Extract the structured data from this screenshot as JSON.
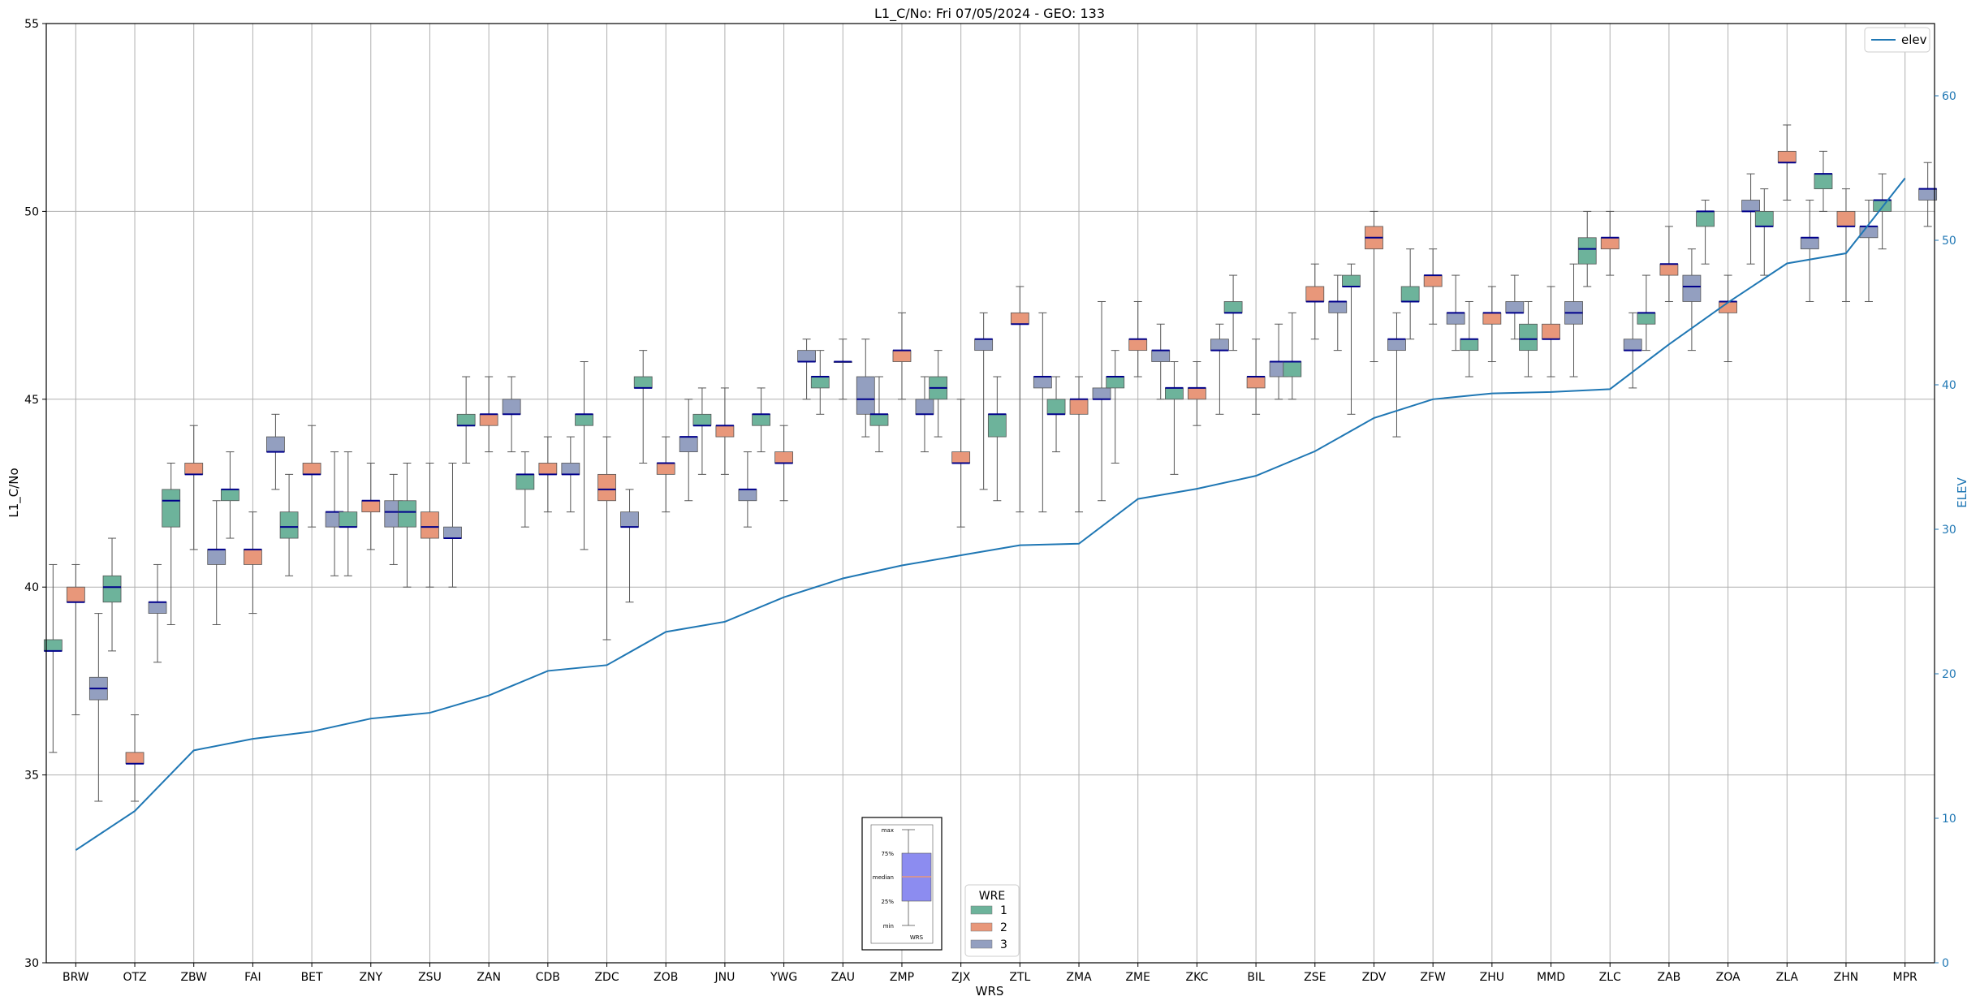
{
  "chart_data": {
    "type": "box",
    "title": "L1_C/No: Fri 07/05/2024 - GEO: 133",
    "xlabel": "WRS",
    "ylabel": "L1_C/No",
    "y2label": "ELEV",
    "ylim": [
      30,
      55
    ],
    "y2lim": [
      0,
      65
    ],
    "yticks": [
      30,
      35,
      40,
      45,
      50,
      55
    ],
    "y2ticks": [
      0,
      10,
      20,
      30,
      40,
      50,
      60
    ],
    "grid": true,
    "colors": {
      "1": "#6db39b",
      "2": "#e8977a",
      "3": "#939fc0",
      "median": "#00008b",
      "elev": "#1f77b4",
      "whisker": "#555555"
    },
    "categories": [
      "BRW",
      "OTZ",
      "ZBW",
      "FAI",
      "BET",
      "ZNY",
      "ZSU",
      "ZAN",
      "CDB",
      "ZDC",
      "ZOB",
      "JNU",
      "YWG",
      "ZAU",
      "ZMP",
      "ZJX",
      "ZTL",
      "ZMA",
      "ZME",
      "ZKC",
      "BIL",
      "ZSE",
      "ZDV",
      "ZFW",
      "ZHU",
      "MMD",
      "ZLC",
      "ZAB",
      "ZOA",
      "ZLA",
      "ZHN",
      "MPR"
    ],
    "boxes": [
      {
        "cat": "BRW",
        "wre": "1",
        "min": 35.6,
        "q1": 38.3,
        "median": 38.3,
        "q3": 38.6,
        "max": 40.6
      },
      {
        "cat": "BRW",
        "wre": "2",
        "min": 36.6,
        "q1": 39.6,
        "median": 39.6,
        "q3": 40.0,
        "max": 40.6
      },
      {
        "cat": "BRW",
        "wre": "3",
        "min": 34.3,
        "q1": 37.0,
        "median": 37.3,
        "q3": 37.6,
        "max": 39.3
      },
      {
        "cat": "OTZ",
        "wre": "1",
        "min": 38.3,
        "q1": 39.6,
        "median": 40.0,
        "q3": 40.3,
        "max": 41.3
      },
      {
        "cat": "OTZ",
        "wre": "2",
        "min": 34.3,
        "q1": 35.3,
        "median": 35.3,
        "q3": 35.6,
        "max": 36.6
      },
      {
        "cat": "OTZ",
        "wre": "3",
        "min": 38.0,
        "q1": 39.3,
        "median": 39.6,
        "q3": 39.6,
        "max": 40.6
      },
      {
        "cat": "ZBW",
        "wre": "1",
        "min": 39.0,
        "q1": 41.6,
        "median": 42.3,
        "q3": 42.6,
        "max": 43.3
      },
      {
        "cat": "ZBW",
        "wre": "2",
        "min": 41.0,
        "q1": 43.0,
        "median": 43.0,
        "q3": 43.3,
        "max": 44.3
      },
      {
        "cat": "ZBW",
        "wre": "3",
        "min": 39.0,
        "q1": 40.6,
        "median": 41.0,
        "q3": 41.0,
        "max": 42.3
      },
      {
        "cat": "FAI",
        "wre": "1",
        "min": 41.3,
        "q1": 42.3,
        "median": 42.6,
        "q3": 42.6,
        "max": 43.6
      },
      {
        "cat": "FAI",
        "wre": "2",
        "min": 39.3,
        "q1": 40.6,
        "median": 41.0,
        "q3": 41.0,
        "max": 42.0
      },
      {
        "cat": "FAI",
        "wre": "3",
        "min": 42.6,
        "q1": 43.6,
        "median": 43.6,
        "q3": 44.0,
        "max": 44.6
      },
      {
        "cat": "BET",
        "wre": "1",
        "min": 40.3,
        "q1": 41.3,
        "median": 41.6,
        "q3": 42.0,
        "max": 43.0
      },
      {
        "cat": "BET",
        "wre": "2",
        "min": 41.6,
        "q1": 43.0,
        "median": 43.0,
        "q3": 43.3,
        "max": 44.3
      },
      {
        "cat": "BET",
        "wre": "3",
        "min": 40.3,
        "q1": 41.6,
        "median": 42.0,
        "q3": 42.0,
        "max": 43.6
      },
      {
        "cat": "ZNY",
        "wre": "1",
        "min": 40.3,
        "q1": 41.6,
        "median": 41.6,
        "q3": 42.0,
        "max": 43.6
      },
      {
        "cat": "ZNY",
        "wre": "2",
        "min": 41.0,
        "q1": 42.0,
        "median": 42.3,
        "q3": 42.3,
        "max": 43.3
      },
      {
        "cat": "ZNY",
        "wre": "3",
        "min": 40.6,
        "q1": 41.6,
        "median": 42.0,
        "q3": 42.3,
        "max": 43.0
      },
      {
        "cat": "ZSU",
        "wre": "1",
        "min": 40.0,
        "q1": 41.6,
        "median": 42.0,
        "q3": 42.3,
        "max": 43.3
      },
      {
        "cat": "ZSU",
        "wre": "2",
        "min": 40.0,
        "q1": 41.3,
        "median": 41.6,
        "q3": 42.0,
        "max": 43.3
      },
      {
        "cat": "ZSU",
        "wre": "3",
        "min": 40.0,
        "q1": 41.3,
        "median": 41.3,
        "q3": 41.6,
        "max": 43.3
      },
      {
        "cat": "ZAN",
        "wre": "1",
        "min": 43.3,
        "q1": 44.3,
        "median": 44.3,
        "q3": 44.6,
        "max": 45.6
      },
      {
        "cat": "ZAN",
        "wre": "2",
        "min": 43.6,
        "q1": 44.3,
        "median": 44.6,
        "q3": 44.6,
        "max": 45.6
      },
      {
        "cat": "ZAN",
        "wre": "3",
        "min": 43.6,
        "q1": 44.6,
        "median": 44.6,
        "q3": 45.0,
        "max": 45.6
      },
      {
        "cat": "CDB",
        "wre": "1",
        "min": 41.6,
        "q1": 42.6,
        "median": 43.0,
        "q3": 43.0,
        "max": 43.6
      },
      {
        "cat": "CDB",
        "wre": "2",
        "min": 42.0,
        "q1": 43.0,
        "median": 43.0,
        "q3": 43.3,
        "max": 44.0
      },
      {
        "cat": "CDB",
        "wre": "3",
        "min": 42.0,
        "q1": 43.0,
        "median": 43.0,
        "q3": 43.3,
        "max": 44.0
      },
      {
        "cat": "ZDC",
        "wre": "1",
        "min": 41.0,
        "q1": 44.3,
        "median": 44.6,
        "q3": 44.6,
        "max": 46.0
      },
      {
        "cat": "ZDC",
        "wre": "2",
        "min": 38.6,
        "q1": 42.3,
        "median": 42.6,
        "q3": 43.0,
        "max": 44.0
      },
      {
        "cat": "ZDC",
        "wre": "3",
        "min": 39.6,
        "q1": 41.6,
        "median": 41.6,
        "q3": 42.0,
        "max": 42.6
      },
      {
        "cat": "ZOB",
        "wre": "1",
        "min": 43.3,
        "q1": 45.3,
        "median": 45.3,
        "q3": 45.6,
        "max": 46.3
      },
      {
        "cat": "ZOB",
        "wre": "2",
        "min": 42.0,
        "q1": 43.0,
        "median": 43.3,
        "q3": 43.3,
        "max": 44.0
      },
      {
        "cat": "ZOB",
        "wre": "3",
        "min": 42.3,
        "q1": 43.6,
        "median": 44.0,
        "q3": 44.0,
        "max": 45.0
      },
      {
        "cat": "JNU",
        "wre": "1",
        "min": 43.0,
        "q1": 44.3,
        "median": 44.3,
        "q3": 44.6,
        "max": 45.3
      },
      {
        "cat": "JNU",
        "wre": "2",
        "min": 43.0,
        "q1": 44.0,
        "median": 44.3,
        "q3": 44.3,
        "max": 45.3
      },
      {
        "cat": "JNU",
        "wre": "3",
        "min": 41.6,
        "q1": 42.3,
        "median": 42.6,
        "q3": 42.6,
        "max": 43.6
      },
      {
        "cat": "YWG",
        "wre": "1",
        "min": 43.6,
        "q1": 44.3,
        "median": 44.6,
        "q3": 44.6,
        "max": 45.3
      },
      {
        "cat": "YWG",
        "wre": "2",
        "min": 42.3,
        "q1": 43.3,
        "median": 43.3,
        "q3": 43.6,
        "max": 44.3
      },
      {
        "cat": "YWG",
        "wre": "3",
        "min": 45.0,
        "q1": 46.0,
        "median": 46.0,
        "q3": 46.3,
        "max": 46.6
      },
      {
        "cat": "ZAU",
        "wre": "1",
        "min": 44.6,
        "q1": 45.3,
        "median": 45.6,
        "q3": 45.6,
        "max": 46.3
      },
      {
        "cat": "ZAU",
        "wre": "2",
        "min": 45.0,
        "q1": 46.0,
        "median": 46.0,
        "q3": 46.0,
        "max": 46.6
      },
      {
        "cat": "ZAU",
        "wre": "3",
        "min": 44.0,
        "q1": 44.6,
        "median": 45.0,
        "q3": 45.6,
        "max": 46.6
      },
      {
        "cat": "ZMP",
        "wre": "1",
        "min": 43.6,
        "q1": 44.3,
        "median": 44.6,
        "q3": 44.6,
        "max": 45.6
      },
      {
        "cat": "ZMP",
        "wre": "2",
        "min": 45.0,
        "q1": 46.0,
        "median": 46.3,
        "q3": 46.3,
        "max": 47.3
      },
      {
        "cat": "ZMP",
        "wre": "3",
        "min": 43.6,
        "q1": 44.6,
        "median": 44.6,
        "q3": 45.0,
        "max": 45.6
      },
      {
        "cat": "ZJX",
        "wre": "1",
        "min": 44.0,
        "q1": 45.0,
        "median": 45.3,
        "q3": 45.6,
        "max": 46.3
      },
      {
        "cat": "ZJX",
        "wre": "2",
        "min": 41.6,
        "q1": 43.3,
        "median": 43.3,
        "q3": 43.6,
        "max": 45.0
      },
      {
        "cat": "ZJX",
        "wre": "3",
        "min": 42.6,
        "q1": 46.3,
        "median": 46.6,
        "q3": 46.6,
        "max": 47.3
      },
      {
        "cat": "ZTL",
        "wre": "1",
        "min": 42.3,
        "q1": 44.0,
        "median": 44.6,
        "q3": 44.6,
        "max": 45.6
      },
      {
        "cat": "ZTL",
        "wre": "2",
        "min": 42.0,
        "q1": 47.0,
        "median": 47.0,
        "q3": 47.3,
        "max": 48.0
      },
      {
        "cat": "ZTL",
        "wre": "3",
        "min": 42.0,
        "q1": 45.3,
        "median": 45.6,
        "q3": 45.6,
        "max": 47.3
      },
      {
        "cat": "ZMA",
        "wre": "1",
        "min": 43.6,
        "q1": 44.6,
        "median": 44.6,
        "q3": 45.0,
        "max": 45.6
      },
      {
        "cat": "ZMA",
        "wre": "2",
        "min": 42.0,
        "q1": 44.6,
        "median": 45.0,
        "q3": 45.0,
        "max": 45.6
      },
      {
        "cat": "ZMA",
        "wre": "3",
        "min": 42.3,
        "q1": 45.0,
        "median": 45.0,
        "q3": 45.3,
        "max": 47.6
      },
      {
        "cat": "ZME",
        "wre": "1",
        "min": 43.3,
        "q1": 45.3,
        "median": 45.6,
        "q3": 45.6,
        "max": 46.3
      },
      {
        "cat": "ZME",
        "wre": "2",
        "min": 45.6,
        "q1": 46.3,
        "median": 46.6,
        "q3": 46.6,
        "max": 47.6
      },
      {
        "cat": "ZME",
        "wre": "3",
        "min": 45.0,
        "q1": 46.0,
        "median": 46.3,
        "q3": 46.3,
        "max": 47.0
      },
      {
        "cat": "ZKC",
        "wre": "1",
        "min": 43.0,
        "q1": 45.0,
        "median": 45.3,
        "q3": 45.3,
        "max": 46.0
      },
      {
        "cat": "ZKC",
        "wre": "2",
        "min": 44.3,
        "q1": 45.0,
        "median": 45.3,
        "q3": 45.3,
        "max": 46.0
      },
      {
        "cat": "ZKC",
        "wre": "3",
        "min": 44.6,
        "q1": 46.3,
        "median": 46.3,
        "q3": 46.6,
        "max": 47.0
      },
      {
        "cat": "BIL",
        "wre": "1",
        "min": 46.3,
        "q1": 47.3,
        "median": 47.3,
        "q3": 47.6,
        "max": 48.3
      },
      {
        "cat": "BIL",
        "wre": "2",
        "min": 44.6,
        "q1": 45.3,
        "median": 45.6,
        "q3": 45.6,
        "max": 46.6
      },
      {
        "cat": "BIL",
        "wre": "3",
        "min": 45.0,
        "q1": 45.6,
        "median": 46.0,
        "q3": 46.0,
        "max": 47.0
      },
      {
        "cat": "ZSE",
        "wre": "1",
        "min": 45.0,
        "q1": 45.6,
        "median": 46.0,
        "q3": 46.0,
        "max": 47.3
      },
      {
        "cat": "ZSE",
        "wre": "2",
        "min": 46.6,
        "q1": 47.6,
        "median": 47.6,
        "q3": 48.0,
        "max": 48.6
      },
      {
        "cat": "ZSE",
        "wre": "3",
        "min": 46.3,
        "q1": 47.3,
        "median": 47.6,
        "q3": 47.6,
        "max": 48.3
      },
      {
        "cat": "ZDV",
        "wre": "1",
        "min": 44.6,
        "q1": 48.0,
        "median": 48.0,
        "q3": 48.3,
        "max": 48.6
      },
      {
        "cat": "ZDV",
        "wre": "2",
        "min": 46.0,
        "q1": 49.0,
        "median": 49.3,
        "q3": 49.6,
        "max": 50.0
      },
      {
        "cat": "ZDV",
        "wre": "3",
        "min": 44.0,
        "q1": 46.3,
        "median": 46.6,
        "q3": 46.6,
        "max": 47.3
      },
      {
        "cat": "ZFW",
        "wre": "1",
        "min": 46.6,
        "q1": 47.6,
        "median": 47.6,
        "q3": 48.0,
        "max": 49.0
      },
      {
        "cat": "ZFW",
        "wre": "2",
        "min": 47.0,
        "q1": 48.0,
        "median": 48.3,
        "q3": 48.3,
        "max": 49.0
      },
      {
        "cat": "ZFW",
        "wre": "3",
        "min": 46.3,
        "q1": 47.0,
        "median": 47.3,
        "q3": 47.3,
        "max": 48.3
      },
      {
        "cat": "ZHU",
        "wre": "1",
        "min": 45.6,
        "q1": 46.3,
        "median": 46.6,
        "q3": 46.6,
        "max": 47.6
      },
      {
        "cat": "ZHU",
        "wre": "2",
        "min": 46.0,
        "q1": 47.0,
        "median": 47.3,
        "q3": 47.3,
        "max": 48.0
      },
      {
        "cat": "ZHU",
        "wre": "3",
        "min": 46.6,
        "q1": 47.3,
        "median": 47.3,
        "q3": 47.6,
        "max": 48.3
      },
      {
        "cat": "MMD",
        "wre": "1",
        "min": 45.6,
        "q1": 46.3,
        "median": 46.6,
        "q3": 47.0,
        "max": 47.6
      },
      {
        "cat": "MMD",
        "wre": "2",
        "min": 45.6,
        "q1": 46.6,
        "median": 46.6,
        "q3": 47.0,
        "max": 48.0
      },
      {
        "cat": "MMD",
        "wre": "3",
        "min": 45.6,
        "q1": 47.0,
        "median": 47.3,
        "q3": 47.6,
        "max": 48.6
      },
      {
        "cat": "ZLC",
        "wre": "1",
        "min": 48.0,
        "q1": 48.6,
        "median": 49.0,
        "q3": 49.3,
        "max": 50.0
      },
      {
        "cat": "ZLC",
        "wre": "2",
        "min": 48.3,
        "q1": 49.0,
        "median": 49.3,
        "q3": 49.3,
        "max": 50.0
      },
      {
        "cat": "ZLC",
        "wre": "3",
        "min": 45.3,
        "q1": 46.3,
        "median": 46.3,
        "q3": 46.6,
        "max": 47.3
      },
      {
        "cat": "ZAB",
        "wre": "1",
        "min": 46.3,
        "q1": 47.0,
        "median": 47.3,
        "q3": 47.3,
        "max": 48.3
      },
      {
        "cat": "ZAB",
        "wre": "2",
        "min": 47.6,
        "q1": 48.3,
        "median": 48.6,
        "q3": 48.6,
        "max": 49.6
      },
      {
        "cat": "ZAB",
        "wre": "3",
        "min": 46.3,
        "q1": 47.6,
        "median": 48.0,
        "q3": 48.3,
        "max": 49.0
      },
      {
        "cat": "ZOA",
        "wre": "1",
        "min": 48.6,
        "q1": 49.6,
        "median": 50.0,
        "q3": 50.0,
        "max": 50.3
      },
      {
        "cat": "ZOA",
        "wre": "2",
        "min": 46.0,
        "q1": 47.3,
        "median": 47.6,
        "q3": 47.6,
        "max": 48.3
      },
      {
        "cat": "ZOA",
        "wre": "3",
        "min": 48.6,
        "q1": 50.0,
        "median": 50.0,
        "q3": 50.3,
        "max": 51.0
      },
      {
        "cat": "ZLA",
        "wre": "1",
        "min": 48.3,
        "q1": 49.6,
        "median": 49.6,
        "q3": 50.0,
        "max": 50.6
      },
      {
        "cat": "ZLA",
        "wre": "2",
        "min": 50.3,
        "q1": 51.3,
        "median": 51.3,
        "q3": 51.6,
        "max": 52.3
      },
      {
        "cat": "ZLA",
        "wre": "3",
        "min": 47.6,
        "q1": 49.0,
        "median": 49.3,
        "q3": 49.3,
        "max": 50.3
      },
      {
        "cat": "ZHN",
        "wre": "1",
        "min": 50.0,
        "q1": 50.6,
        "median": 51.0,
        "q3": 51.0,
        "max": 51.6
      },
      {
        "cat": "ZHN",
        "wre": "2",
        "min": 47.6,
        "q1": 49.6,
        "median": 49.6,
        "q3": 50.0,
        "max": 50.6
      },
      {
        "cat": "ZHN",
        "wre": "3",
        "min": 47.6,
        "q1": 49.3,
        "median": 49.6,
        "q3": 49.6,
        "max": 50.3
      },
      {
        "cat": "MPR",
        "wre": "1",
        "min": 49.0,
        "q1": 50.0,
        "median": 50.3,
        "q3": 50.3,
        "max": 51.0
      },
      {
        "cat": "MPR",
        "wre": "3",
        "min": 49.6,
        "q1": 50.3,
        "median": 50.6,
        "q3": 50.6,
        "max": 51.3
      }
    ],
    "elev_series": {
      "name": "elev",
      "axis": "right",
      "values": [
        7.8,
        10.5,
        14.7,
        15.5,
        16.0,
        16.9,
        17.3,
        18.5,
        20.2,
        20.6,
        22.9,
        23.6,
        25.3,
        26.6,
        27.5,
        28.2,
        28.9,
        29.0,
        32.1,
        32.8,
        33.7,
        35.4,
        37.7,
        39.0,
        39.4,
        39.5,
        39.7,
        42.8,
        45.7,
        48.4,
        49.1,
        54.3
      ]
    },
    "legend": {
      "elev": {
        "label": "elev",
        "placement": "top-right"
      },
      "wre": {
        "title": "WRE",
        "entries": [
          "1",
          "2",
          "3"
        ],
        "placement": "bottom-center"
      }
    },
    "key_box": {
      "labels": [
        "max",
        "75%",
        "median",
        "25%",
        "min"
      ],
      "xlabel": "WRS",
      "fill": "#8c8cf0",
      "median_color": "#e8977a",
      "placement": "bottom-center"
    }
  }
}
